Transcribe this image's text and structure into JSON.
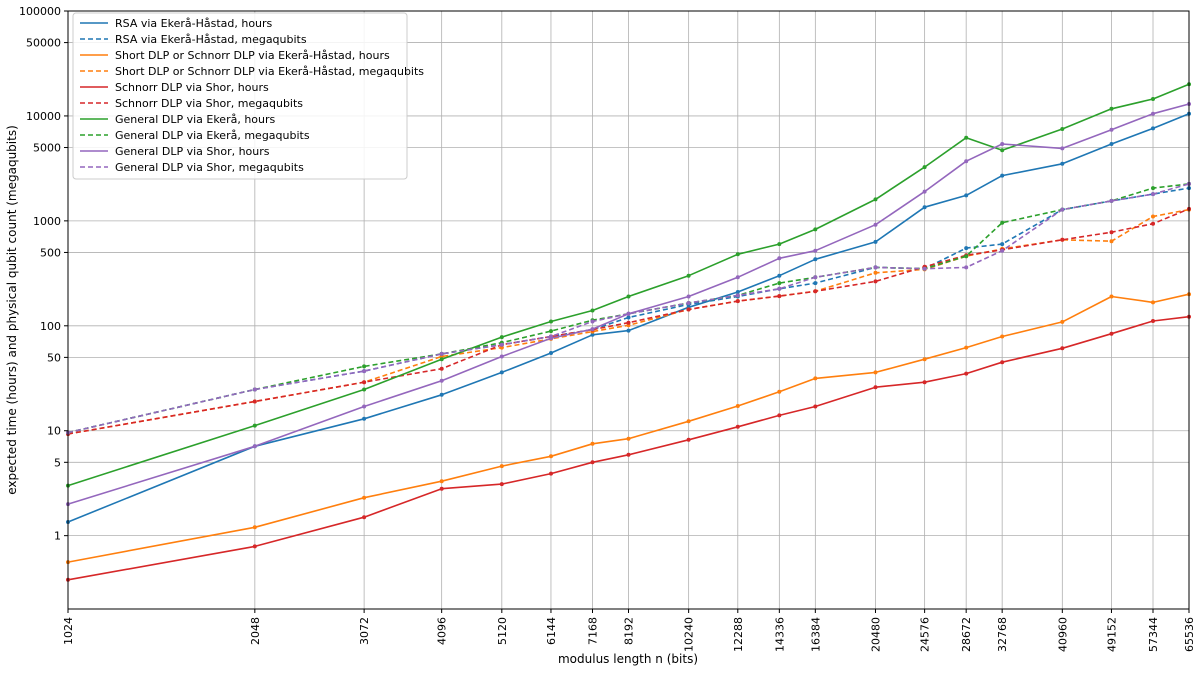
{
  "chart_data": {
    "type": "line",
    "title": "",
    "xlabel": "modulus length n (bits)",
    "ylabel": "expected time (hours) and physical qubit count (megaqubits)",
    "xscale": "log2",
    "yscale": "log10",
    "xlim": [
      1024,
      65536
    ],
    "ylim": [
      0.2,
      100000
    ],
    "grid": true,
    "legend_position": "top-left",
    "x": [
      1024,
      2048,
      3072,
      4096,
      5120,
      6144,
      7168,
      8192,
      10240,
      12288,
      14336,
      16384,
      20480,
      24576,
      28672,
      32768,
      40960,
      49152,
      57344,
      65536
    ],
    "x_tick_labels": [
      "1024",
      "2048",
      "3072",
      "4096",
      "5120",
      "6144",
      "7168",
      "8192",
      "10240",
      "12288",
      "14336",
      "16384",
      "20480",
      "24576",
      "28672",
      "32768",
      "40960",
      "49152",
      "57344",
      "65536"
    ],
    "y_ticks": [
      1,
      5,
      10,
      50,
      100,
      500,
      1000,
      5000,
      10000,
      50000,
      100000
    ],
    "y_tick_labels": [
      "1",
      "5",
      "10",
      "50",
      "100",
      "500",
      "1000",
      "5000",
      "10000",
      "50000",
      "100000"
    ],
    "series": [
      {
        "name": "RSA via Ekerå-Håstad, hours",
        "color": "#1f77b4",
        "dash": false,
        "values": [
          1.35,
          7.1,
          13,
          22,
          36,
          55,
          82,
          90,
          150,
          210,
          300,
          430,
          630,
          1350,
          1750,
          2700,
          3500,
          5400,
          7600,
          10500
        ]
      },
      {
        "name": "RSA via Ekerå-Håstad, megaqubits",
        "color": "#1f77b4",
        "dash": true,
        "values": [
          9.6,
          24.7,
          37,
          54,
          66,
          79,
          92,
          120,
          160,
          190,
          225,
          255,
          360,
          350,
          550,
          600,
          1280,
          1550,
          1800,
          2050
        ]
      },
      {
        "name": "Short DLP or Schnorr DLP via Ekerå-Håstad, hours",
        "color": "#ff7f0e",
        "dash": false,
        "values": [
          0.56,
          1.2,
          2.3,
          3.3,
          4.6,
          5.7,
          7.5,
          8.4,
          12.3,
          17.2,
          23.5,
          31.5,
          36,
          48,
          62,
          79,
          109,
          190,
          167,
          200
        ]
      },
      {
        "name": "Short DLP or Schnorr DLP via Ekerå-Håstad, megaqubits",
        "color": "#ff7f0e",
        "dash": true,
        "values": [
          9.3,
          19,
          29,
          51,
          62,
          75,
          88,
          101,
          143,
          172,
          192,
          213,
          320,
          345,
          460,
          540,
          660,
          640,
          1100,
          1280
        ]
      },
      {
        "name": "Schnorr DLP via Shor, hours",
        "color": "#d62728",
        "dash": false,
        "values": [
          0.38,
          0.79,
          1.5,
          2.8,
          3.1,
          3.9,
          5.0,
          5.9,
          8.2,
          10.9,
          14,
          17,
          26,
          29,
          35,
          45,
          61,
          84,
          111,
          122
        ]
      },
      {
        "name": "Schnorr DLP via Shor, megaqubits",
        "color": "#d62728",
        "dash": true,
        "values": [
          9.3,
          19,
          29,
          39,
          66,
          79,
          92,
          107,
          143,
          172,
          192,
          213,
          265,
          365,
          470,
          530,
          660,
          780,
          940,
          1300
        ]
      },
      {
        "name": "General DLP via Ekerå, hours",
        "color": "#2ca02c",
        "dash": false,
        "values": [
          3.0,
          11.2,
          24.7,
          48,
          78,
          110,
          140,
          190,
          300,
          480,
          600,
          830,
          1600,
          3250,
          6200,
          4700,
          7500,
          11700,
          14500,
          20000
        ]
      },
      {
        "name": "General DLP via Ekerå, megaqubits",
        "color": "#2ca02c",
        "dash": true,
        "values": [
          9.6,
          24.7,
          41,
          54,
          69,
          89,
          113,
          130,
          165,
          195,
          255,
          290,
          360,
          350,
          460,
          960,
          1280,
          1550,
          2050,
          2250
        ]
      },
      {
        "name": "General DLP via Shor, hours",
        "color": "#9467bd",
        "dash": false,
        "values": [
          2.0,
          7.1,
          17,
          30,
          51,
          76,
          93,
          130,
          190,
          290,
          440,
          520,
          920,
          1900,
          3700,
          5400,
          4900,
          7400,
          10500,
          13000
        ]
      },
      {
        "name": "General DLP via Shor, megaqubits",
        "color": "#9467bd",
        "dash": true,
        "values": [
          9.6,
          24.7,
          37,
          54,
          66,
          79,
          110,
          130,
          165,
          195,
          225,
          290,
          360,
          350,
          360,
          520,
          1280,
          1550,
          1800,
          2250
        ]
      }
    ]
  }
}
